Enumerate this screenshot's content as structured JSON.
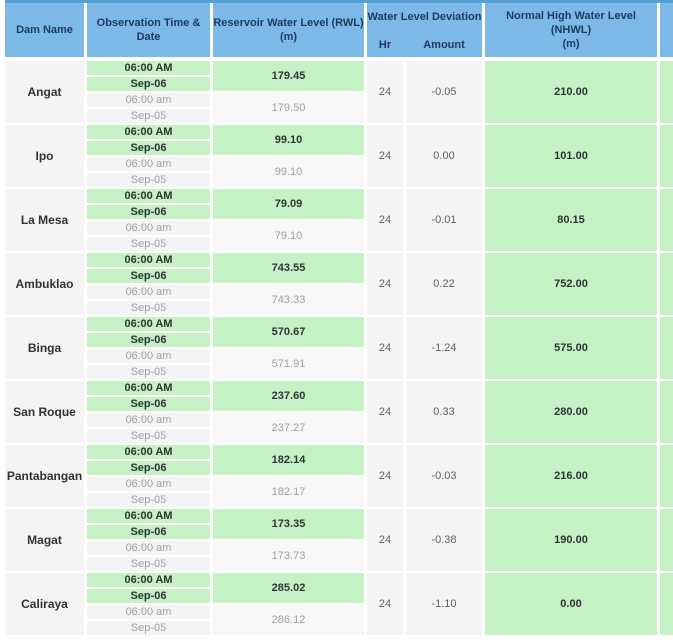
{
  "colors": {
    "header_bg": "#7db9e6",
    "header_top_border": "#56a0d8",
    "header_text": "#1c3a5f",
    "highlight_green": "#c4f2c4",
    "cell_gray": "#f4f4f4",
    "rwl_prev_bg": "#f7f7f7",
    "text_dark": "#303336",
    "text_gray": "#9da0a3",
    "text_medium": "#5d6165"
  },
  "header": {
    "dam_name": "Dam Name",
    "observation": "Observation Time & Date",
    "rwl_line1": "Reservoir Water Level (RWL)",
    "rwl_line2": "(m)",
    "deviation_title": "Water Level Deviation",
    "deviation_hr": "Hr",
    "deviation_amount": "Amount",
    "nhwl_line1": "Normal High Water Level (NHWL)",
    "nhwl_line2": "(m)"
  },
  "observation": {
    "current_time": "06:00 AM",
    "current_date": "Sep-06",
    "prev_time": "06:00 am",
    "prev_date": "Sep-05"
  },
  "dams": [
    {
      "name": "Angat",
      "rwl_current": "179.45",
      "rwl_previous": "179.50",
      "dev_hr": "24",
      "dev_amount": "-0.05",
      "nhwl": "210.00"
    },
    {
      "name": "Ipo",
      "rwl_current": "99.10",
      "rwl_previous": "99.10",
      "dev_hr": "24",
      "dev_amount": "0.00",
      "nhwl": "101.00"
    },
    {
      "name": "La Mesa",
      "rwl_current": "79.09",
      "rwl_previous": "79.10",
      "dev_hr": "24",
      "dev_amount": "-0.01",
      "nhwl": "80.15"
    },
    {
      "name": "Ambuklao",
      "rwl_current": "743.55",
      "rwl_previous": "743.33",
      "dev_hr": "24",
      "dev_amount": "0.22",
      "nhwl": "752.00"
    },
    {
      "name": "Binga",
      "rwl_current": "570.67",
      "rwl_previous": "571.91",
      "dev_hr": "24",
      "dev_amount": "-1.24",
      "nhwl": "575.00"
    },
    {
      "name": "San Roque",
      "rwl_current": "237.60",
      "rwl_previous": "237.27",
      "dev_hr": "24",
      "dev_amount": "0.33",
      "nhwl": "280.00"
    },
    {
      "name": "Pantabangan",
      "rwl_current": "182.14",
      "rwl_previous": "182.17",
      "dev_hr": "24",
      "dev_amount": "-0.03",
      "nhwl": "216.00"
    },
    {
      "name": "Magat",
      "rwl_current": "173.35",
      "rwl_previous": "173.73",
      "dev_hr": "24",
      "dev_amount": "-0.38",
      "nhwl": "190.00"
    },
    {
      "name": "Caliraya",
      "rwl_current": "285.02",
      "rwl_previous": "286.12",
      "dev_hr": "24",
      "dev_amount": "-1.10",
      "nhwl": "0.00"
    }
  ]
}
